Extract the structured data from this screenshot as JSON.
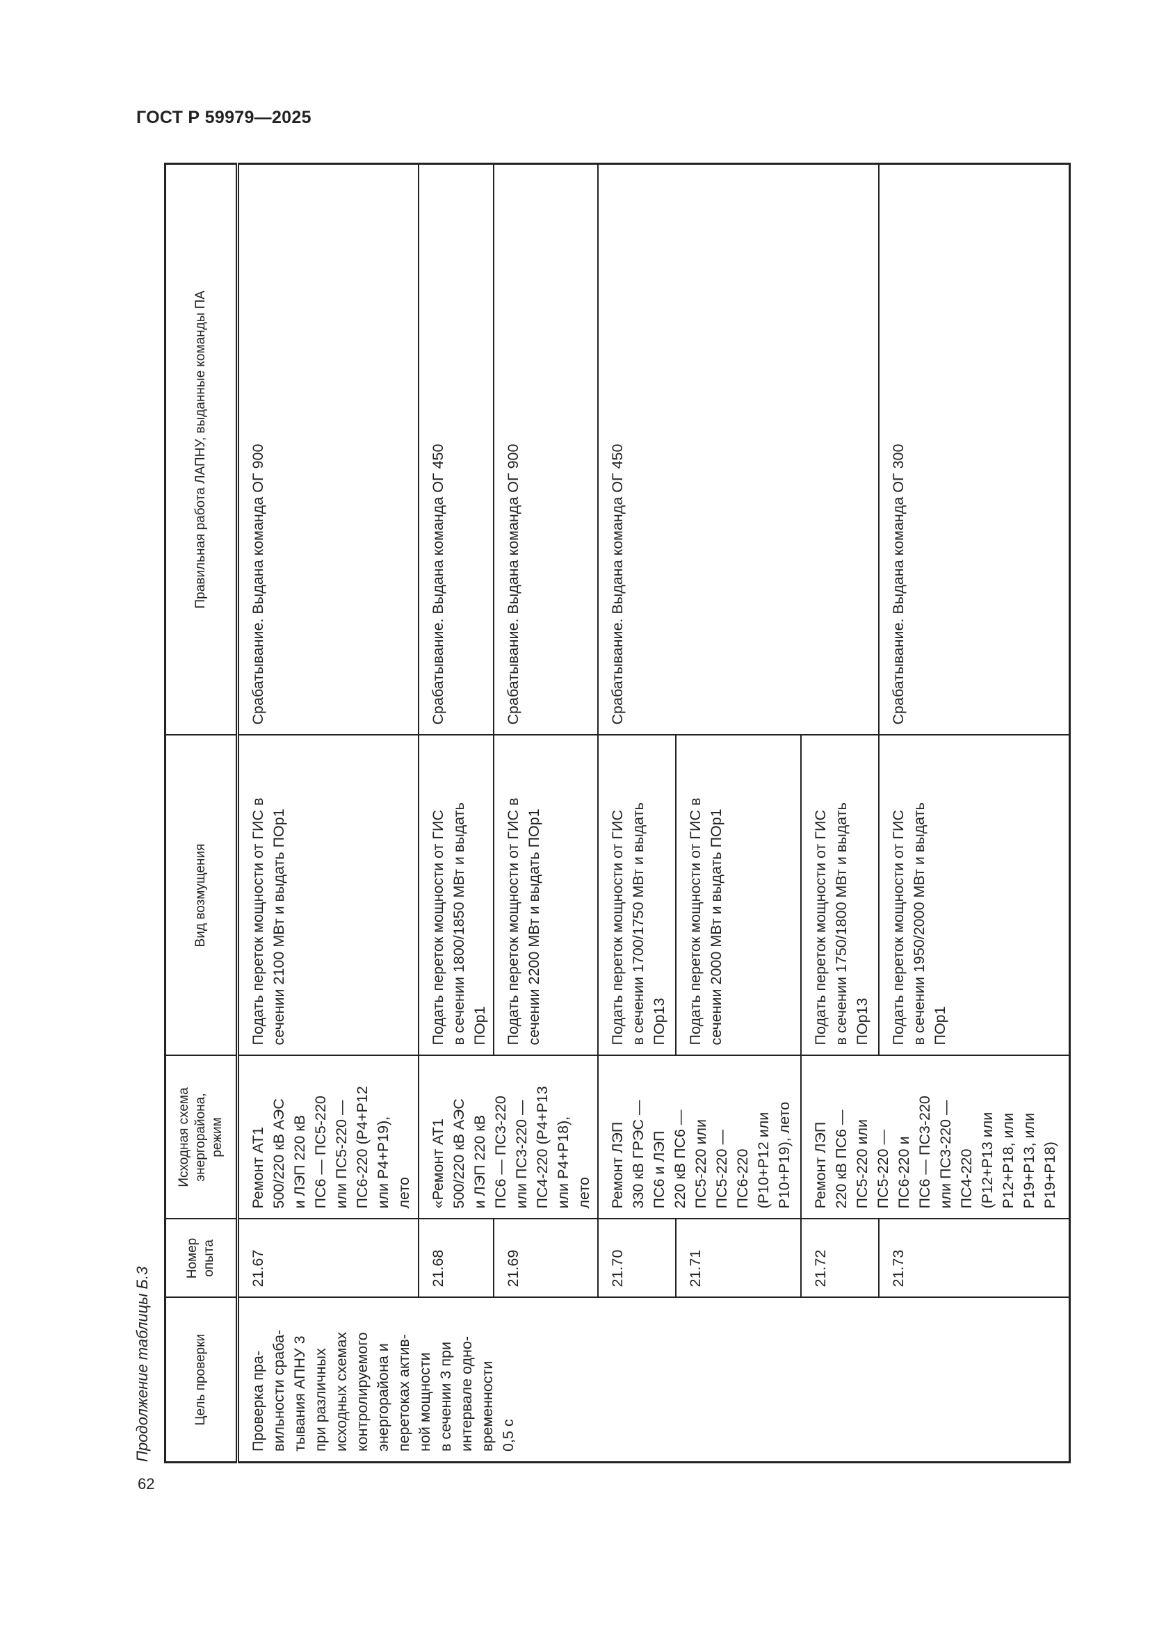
{
  "document": {
    "standard": "ГОСТ Р 59979—2025",
    "page_number": "62",
    "caption": "Продолжение таблицы Б.3"
  },
  "table": {
    "headers": [
      "Цель проверки",
      "Номер\nопыта",
      "Исходная схема\nэнергорайона,\nрежим",
      "Вид возмущения",
      "Правильная работа ЛАПНУ, выданные команды ПА"
    ],
    "purpose": "Проверка пра-\nвильности сраба-\nтывания АПНУ 3\nпри различных\nисходных схемах\nконтролируемого\nэнергорайона и\nперетоках актив-\nной мощности\nв сечении 3 при\nинтервале одно-\nвременности\n0,5 с",
    "schemes": [
      "Ремонт АТ1\n500/220 кВ АЭС\nи ЛЭП 220 кВ\nПС6 — ПС5-220\nили ПС5-220 —\nПС6-220 (Р4+Р12\nили Р4+Р19),\nлето",
      "«Ремонт АТ1\n500/220 кВ АЭС\nи ЛЭП 220 кВ\nПС6 — ПС3-220\nили ПС3-220 —\nПС4-220 (Р4+Р13\nили Р4+Р18),\nлето",
      "Ремонт ЛЭП\n330 кВ ГРЭС —\nПС6 и ЛЭП\n220 кВ ПС6 —\nПС5-220 или\nПС5-220 —\nПС6-220\n(Р10+Р12 или\nР10+Р19), лето",
      "Ремонт ЛЭП\n220 кВ ПС6 —\nПС5-220 или\nПС5-220 —\nПС6-220 и\nПС6 — ПС3-220\nили ПС3-220 —\nПС4-220\n(Р12+Р13 или\nР12+Р18, или\nР19+Р13, или\nР19+Р18)"
    ],
    "rows": [
      {
        "number": "21.67",
        "disturbance": "Подать переток мощности от ГИС в\nсечении 2100 МВт и выдать ПОр1"
      },
      {
        "number": "21.68",
        "disturbance": "Подать переток мощности от ГИС\nв сечении 1800/1850 МВт и выдать\nПОр1"
      },
      {
        "number": "21.69",
        "disturbance": "Подать переток мощности от ГИС в\nсечении 2200 МВт и выдать ПОр1"
      },
      {
        "number": "21.70",
        "disturbance": "Подать переток мощности от ГИС\nв сечении 1700/1750 МВт и выдать\nПОр13"
      },
      {
        "number": "21.71",
        "disturbance": "Подать переток мощности от ГИС в\nсечении 2000 МВт и выдать ПОр1"
      },
      {
        "number": "21.72",
        "disturbance": "Подать переток мощности от ГИС\nв сечении 1750/1800 МВт и выдать\nПОр13"
      },
      {
        "number": "21.73",
        "disturbance": "Подать переток мощности от ГИС\nв сечении 1950/2000 МВт и выдать\nПОр1"
      }
    ],
    "results": [
      "Срабатывание. Выдана команда ОГ 900",
      "Срабатывание. Выдана команда ОГ 450",
      "Срабатывание. Выдана команда ОГ 900",
      "Срабатывание. Выдана команда ОГ 450",
      "Срабатывание. Выдана команда ОГ 300"
    ]
  }
}
